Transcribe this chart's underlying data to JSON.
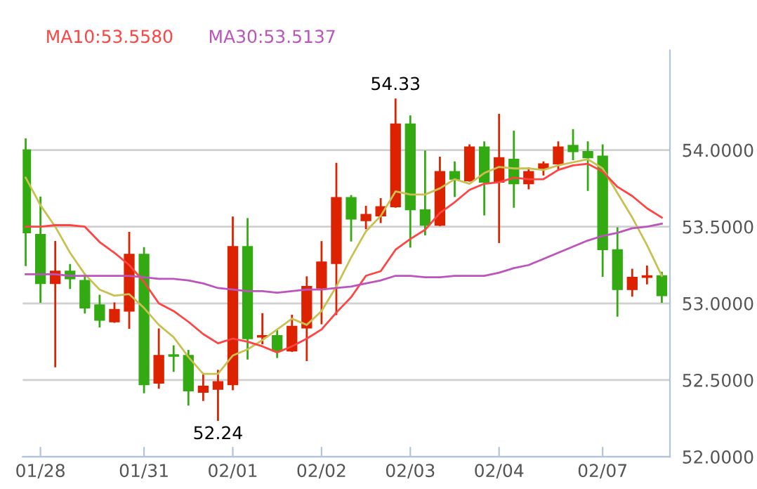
{
  "chart_data": {
    "type": "candlestick",
    "categories": [
      null,
      "01/28",
      null,
      null,
      null,
      null,
      null,
      null,
      "01/31",
      null,
      null,
      null,
      null,
      null,
      "02/01",
      null,
      null,
      null,
      null,
      null,
      "02/02",
      null,
      null,
      null,
      null,
      null,
      "02/03",
      null,
      null,
      null,
      null,
      null,
      "02/04",
      null,
      null,
      null,
      null,
      null,
      null,
      "02/07",
      null,
      null,
      null,
      null
    ],
    "ohlc": [
      [
        54.0,
        54.07,
        53.25,
        53.46
      ],
      [
        53.45,
        53.69,
        53.01,
        53.13
      ],
      [
        53.13,
        53.4,
        52.59,
        53.21
      ],
      [
        53.21,
        53.25,
        53.1,
        53.16
      ],
      [
        53.15,
        53.19,
        52.94,
        52.97
      ],
      [
        52.99,
        53.05,
        52.85,
        52.89
      ],
      [
        52.88,
        53.0,
        52.88,
        52.96
      ],
      [
        52.95,
        53.46,
        52.84,
        53.32
      ],
      [
        53.32,
        53.36,
        52.42,
        52.47
      ],
      [
        52.48,
        52.83,
        52.45,
        52.66
      ],
      [
        52.665,
        52.72,
        52.56,
        52.655
      ],
      [
        52.66,
        52.69,
        52.34,
        52.43
      ],
      [
        52.42,
        52.54,
        52.37,
        52.46
      ],
      [
        52.44,
        52.56,
        52.24,
        52.49
      ],
      [
        52.47,
        53.56,
        52.44,
        53.37
      ],
      [
        53.37,
        53.55,
        52.64,
        52.77
      ],
      [
        52.78,
        52.93,
        52.74,
        52.79
      ],
      [
        52.79,
        52.82,
        52.65,
        52.69
      ],
      [
        52.69,
        52.92,
        52.69,
        52.85
      ],
      [
        52.84,
        53.17,
        52.63,
        53.11
      ],
      [
        53.1,
        53.4,
        52.87,
        53.27
      ],
      [
        53.26,
        53.91,
        52.93,
        53.69
      ],
      [
        53.69,
        53.7,
        53.41,
        53.55
      ],
      [
        53.54,
        53.63,
        53.49,
        53.58
      ],
      [
        53.57,
        53.68,
        53.53,
        53.63
      ],
      [
        53.63,
        54.33,
        53.63,
        54.17
      ],
      [
        54.17,
        54.22,
        53.37,
        53.61
      ],
      [
        53.61,
        53.99,
        53.45,
        53.51
      ],
      [
        53.51,
        53.95,
        53.51,
        53.86
      ],
      [
        53.86,
        53.92,
        53.7,
        53.81
      ],
      [
        53.8,
        54.03,
        53.8,
        54.02
      ],
      [
        54.02,
        54.05,
        53.58,
        53.79
      ],
      [
        53.79,
        54.23,
        53.4,
        53.95
      ],
      [
        53.94,
        54.12,
        53.63,
        53.78
      ],
      [
        53.78,
        53.88,
        53.75,
        53.86
      ],
      [
        53.88,
        53.92,
        53.84,
        53.91
      ],
      [
        53.91,
        54.05,
        53.88,
        54.02
      ],
      [
        54.03,
        54.13,
        53.94,
        53.99
      ],
      [
        53.99,
        54.05,
        53.74,
        53.95
      ],
      [
        53.96,
        54.03,
        53.18,
        53.35
      ],
      [
        53.35,
        53.49,
        52.92,
        53.09
      ],
      [
        53.09,
        53.22,
        53.05,
        53.17
      ],
      [
        53.17,
        53.24,
        53.13,
        53.18
      ],
      [
        53.18,
        53.2,
        53.01,
        53.05
      ]
    ],
    "colors": [
      "#33aa11",
      "#33aa11",
      "#dd2200",
      "#33aa11",
      "#33aa11",
      "#33aa11",
      "#dd2200",
      "#dd2200",
      "#33aa11",
      "#dd2200",
      "#33aa11",
      "#33aa11",
      "#dd2200",
      "#dd2200",
      "#dd2200",
      "#33aa11",
      "#dd2200",
      "#33aa11",
      "#dd2200",
      "#dd2200",
      "#dd2200",
      "#dd2200",
      "#33aa11",
      "#dd2200",
      "#dd2200",
      "#dd2200",
      "#33aa11",
      "#33aa11",
      "#dd2200",
      "#33aa11",
      "#dd2200",
      "#33aa11",
      "#dd2200",
      "#33aa11",
      "#dd2200",
      "#dd2200",
      "#dd2200",
      "#33aa11",
      "#33aa11",
      "#33aa11",
      "#33aa11",
      "#dd2200",
      "#dd2200",
      "#33aa11"
    ],
    "series": [
      {
        "type": "line",
        "color": "#c8c050",
        "values": [
          53.82,
          53.64,
          53.5,
          53.33,
          53.19,
          53.09,
          53.05,
          53.06,
          52.97,
          52.86,
          52.78,
          52.65,
          52.54,
          52.54,
          52.66,
          52.7,
          52.76,
          52.83,
          52.9,
          52.86,
          52.95,
          53.11,
          53.3,
          53.47,
          53.57,
          53.73,
          53.71,
          53.71,
          53.75,
          53.81,
          53.78,
          53.85,
          53.89,
          53.88,
          53.88,
          53.87,
          53.9,
          53.92,
          53.94,
          53.88,
          53.72,
          53.56,
          53.38,
          53.18
        ]
      },
      {
        "type": "line",
        "name": "MA10:53.5580",
        "color": "#ff4444",
        "values": [
          53.5,
          53.5,
          53.51,
          53.51,
          53.5,
          53.4,
          53.33,
          53.25,
          53.14,
          53.0,
          52.95,
          52.88,
          52.8,
          52.74,
          52.77,
          52.75,
          52.72,
          52.68,
          52.72,
          52.77,
          52.83,
          52.94,
          53.04,
          53.18,
          53.21,
          53.35,
          53.42,
          53.48,
          53.59,
          53.66,
          53.74,
          53.78,
          53.79,
          53.82,
          53.81,
          53.81,
          53.87,
          53.9,
          53.91,
          53.86,
          53.76,
          53.7,
          53.62,
          53.56
        ]
      },
      {
        "type": "line",
        "name": "MA30:53.5137",
        "color": "#bb55bb",
        "values": [
          53.19,
          53.19,
          53.19,
          53.18,
          53.18,
          53.18,
          53.18,
          53.18,
          53.17,
          53.16,
          53.16,
          53.15,
          53.13,
          53.1,
          53.09,
          53.08,
          53.08,
          53.07,
          53.08,
          53.09,
          53.09,
          53.1,
          53.11,
          53.13,
          53.15,
          53.18,
          53.18,
          53.17,
          53.17,
          53.18,
          53.18,
          53.18,
          53.2,
          53.23,
          53.25,
          53.29,
          53.33,
          53.37,
          53.41,
          53.44,
          53.46,
          53.49,
          53.5,
          53.52
        ]
      }
    ],
    "ylim": [
      52.0,
      54.65
    ],
    "yticks": [
      {
        "value": 52.0,
        "label": "52.0000"
      },
      {
        "value": 52.5,
        "label": "52.5000"
      },
      {
        "value": 53.0,
        "label": "53.0000"
      },
      {
        "value": 53.5,
        "label": "53.5000"
      },
      {
        "value": 54.0,
        "label": "54.0000"
      }
    ],
    "grid": "y",
    "legend": "top left",
    "annotations": [
      {
        "text": "54.33",
        "y": 54.33
      },
      {
        "text": "52.24",
        "y": 52.24
      }
    ]
  }
}
